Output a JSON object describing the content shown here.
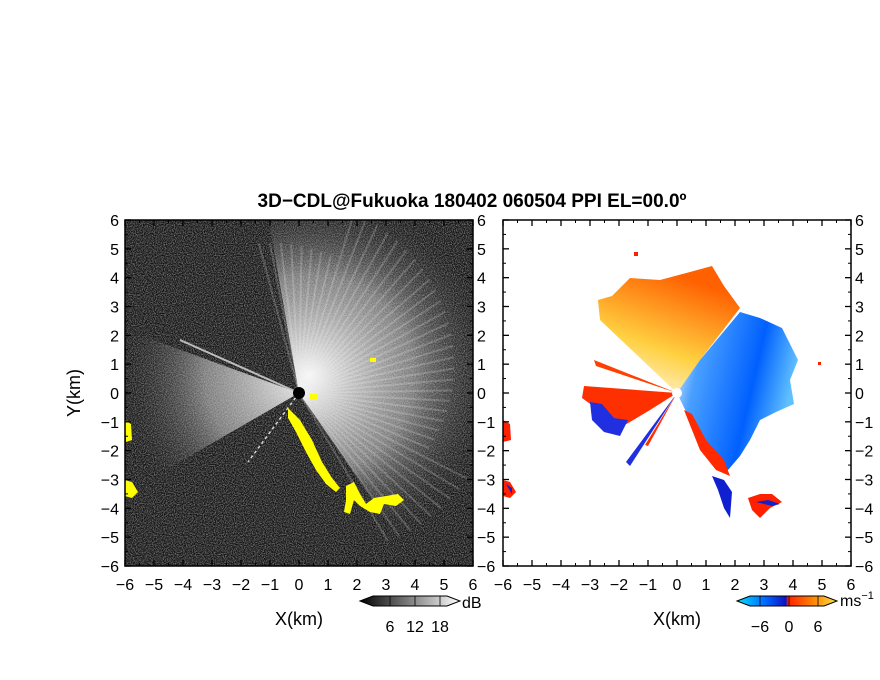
{
  "title": "3D−CDL@Fukuoka 180402 060504 PPI EL=00.0º",
  "chart_data": [
    {
      "type": "heatmap",
      "panel": "left",
      "description_field": "reflectivity",
      "xlabel": "X(km)",
      "ylabel": "Y(km)",
      "xlim": [
        -6,
        6
      ],
      "ylim": [
        -6,
        6
      ],
      "xticks": [
        "−6",
        "−5",
        "−4",
        "−3",
        "−2",
        "−1",
        "0",
        "1",
        "2",
        "3",
        "4",
        "5",
        "6"
      ],
      "yticks": [
        "6",
        "5",
        "4",
        "3",
        "2",
        "1",
        "0",
        "−1",
        "−2",
        "−3",
        "−4",
        "−5",
        "−6"
      ],
      "colorbar": {
        "ticks": [
          "6",
          "12",
          "18"
        ],
        "unit": "dB",
        "colors": [
          "#000000",
          "#ffffff"
        ]
      },
      "highlight_color": "#ffff00"
    },
    {
      "type": "heatmap",
      "panel": "right",
      "description_field": "doppler_velocity",
      "xlabel": "X(km)",
      "xlim": [
        -6,
        6
      ],
      "ylim": [
        -6,
        6
      ],
      "xticks": [
        "−6",
        "−5",
        "−4",
        "−3",
        "−2",
        "−1",
        "0",
        "1",
        "2",
        "3",
        "4",
        "5",
        "6"
      ],
      "yticks": [
        "6",
        "5",
        "4",
        "3",
        "2",
        "1",
        "0",
        "−1",
        "−2",
        "−3",
        "−4",
        "−5",
        "−6"
      ],
      "colorbar": {
        "ticks": [
          "−6",
          "0",
          "6"
        ],
        "unit": "ms",
        "unit_exp": "−1",
        "colors": [
          "#00e0ff",
          "#0060ff",
          "#1010c0",
          "#ff2000",
          "#ff8000",
          "#ffe040"
        ]
      }
    }
  ]
}
